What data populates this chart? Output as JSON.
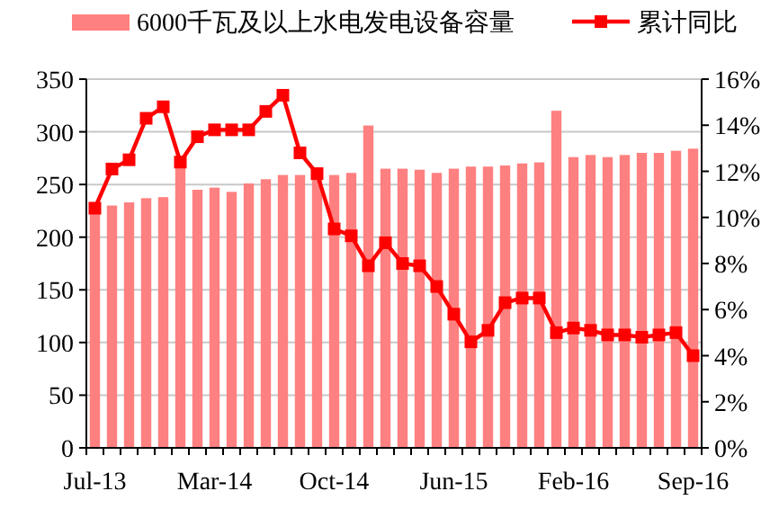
{
  "chart_data": {
    "type": "bar",
    "categories": [
      "Jul-13",
      null,
      null,
      null,
      null,
      null,
      null,
      "Mar-14",
      null,
      null,
      null,
      null,
      null,
      null,
      "Oct-14",
      null,
      null,
      null,
      null,
      null,
      null,
      "Jun-15",
      null,
      null,
      null,
      null,
      null,
      null,
      "Feb-16",
      null,
      null,
      null,
      null,
      null,
      null,
      "Sep-16"
    ],
    "series": [
      {
        "name": "6000千瓦及以上水电发电设备容量",
        "color": "#ff8080",
        "values": [
          225,
          230,
          233,
          237,
          238,
          268,
          245,
          247,
          243,
          251,
          255,
          259,
          259,
          255,
          259,
          261,
          306,
          265,
          265,
          264,
          261,
          265,
          267,
          267,
          268,
          270,
          271,
          320,
          276,
          278,
          276,
          278,
          280,
          280,
          282,
          284
        ]
      },
      {
        "name": "累计同比",
        "type": "line",
        "axis": "y2",
        "color": "#ff0000",
        "marker": "square",
        "values": [
          10.4,
          12.1,
          12.5,
          14.3,
          14.8,
          12.4,
          13.5,
          13.8,
          13.8,
          13.8,
          14.6,
          15.3,
          12.8,
          11.9,
          9.5,
          9.2,
          7.9,
          8.9,
          8.0,
          7.9,
          7.0,
          5.8,
          4.6,
          5.1,
          6.3,
          6.5,
          6.5,
          5.0,
          5.2,
          5.1,
          4.9,
          4.9,
          4.8,
          4.9,
          5.0,
          4.0
        ]
      }
    ],
    "ylim": [
      0,
      350
    ],
    "yticks": [
      0,
      50,
      100,
      150,
      200,
      250,
      300,
      350
    ],
    "y2lim": [
      0,
      16
    ],
    "y2ticks": [
      {
        "value": 0,
        "label": "0%"
      },
      {
        "value": 2,
        "label": "2%"
      },
      {
        "value": 4,
        "label": "4%"
      },
      {
        "value": 6,
        "label": "6%"
      },
      {
        "value": 8,
        "label": "8%"
      },
      {
        "value": 10,
        "label": "10%"
      },
      {
        "value": 12,
        "label": "12%"
      },
      {
        "value": 14,
        "label": "14%"
      },
      {
        "value": 16,
        "label": "16%"
      }
    ],
    "grid": "y",
    "legend": "top"
  }
}
